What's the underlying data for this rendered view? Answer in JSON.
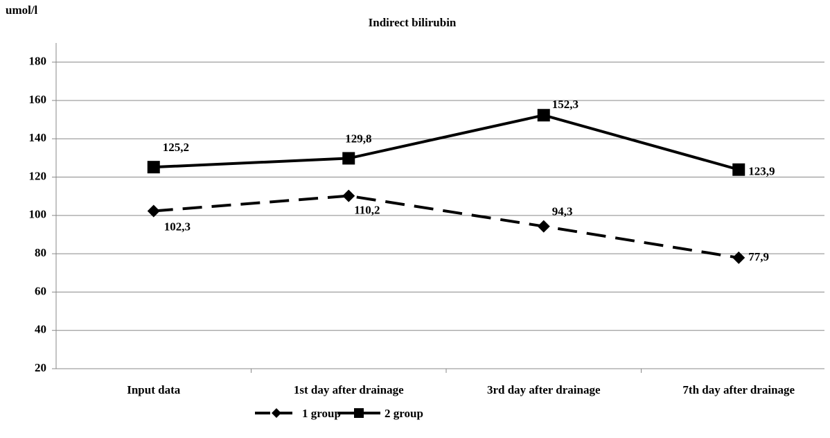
{
  "chart_data": {
    "type": "line",
    "title": "Indirect bilirubin",
    "y_label": "umol/l",
    "categories": [
      "Input data",
      "1st day after drainage",
      "3rd day after drainage",
      "7th day after drainage"
    ],
    "series": [
      {
        "name": "1 group",
        "color": "#000000",
        "dash": true,
        "marker": "diamond",
        "values": [
          102.3,
          110.2,
          94.3,
          77.9
        ],
        "value_labels": [
          "102,3",
          "110,2",
          "94,3",
          "77,9"
        ]
      },
      {
        "name": "2 group",
        "color": "#000000",
        "dash": false,
        "marker": "square",
        "values": [
          125.2,
          129.8,
          152.3,
          123.9
        ],
        "value_labels": [
          "125,2",
          "129,8",
          "152,3",
          "123,9"
        ]
      }
    ],
    "ylim": [
      20,
      190
    ],
    "yticks": [
      20,
      40,
      60,
      80,
      100,
      120,
      140,
      160,
      180
    ],
    "grid": true,
    "legend": "bottom"
  }
}
